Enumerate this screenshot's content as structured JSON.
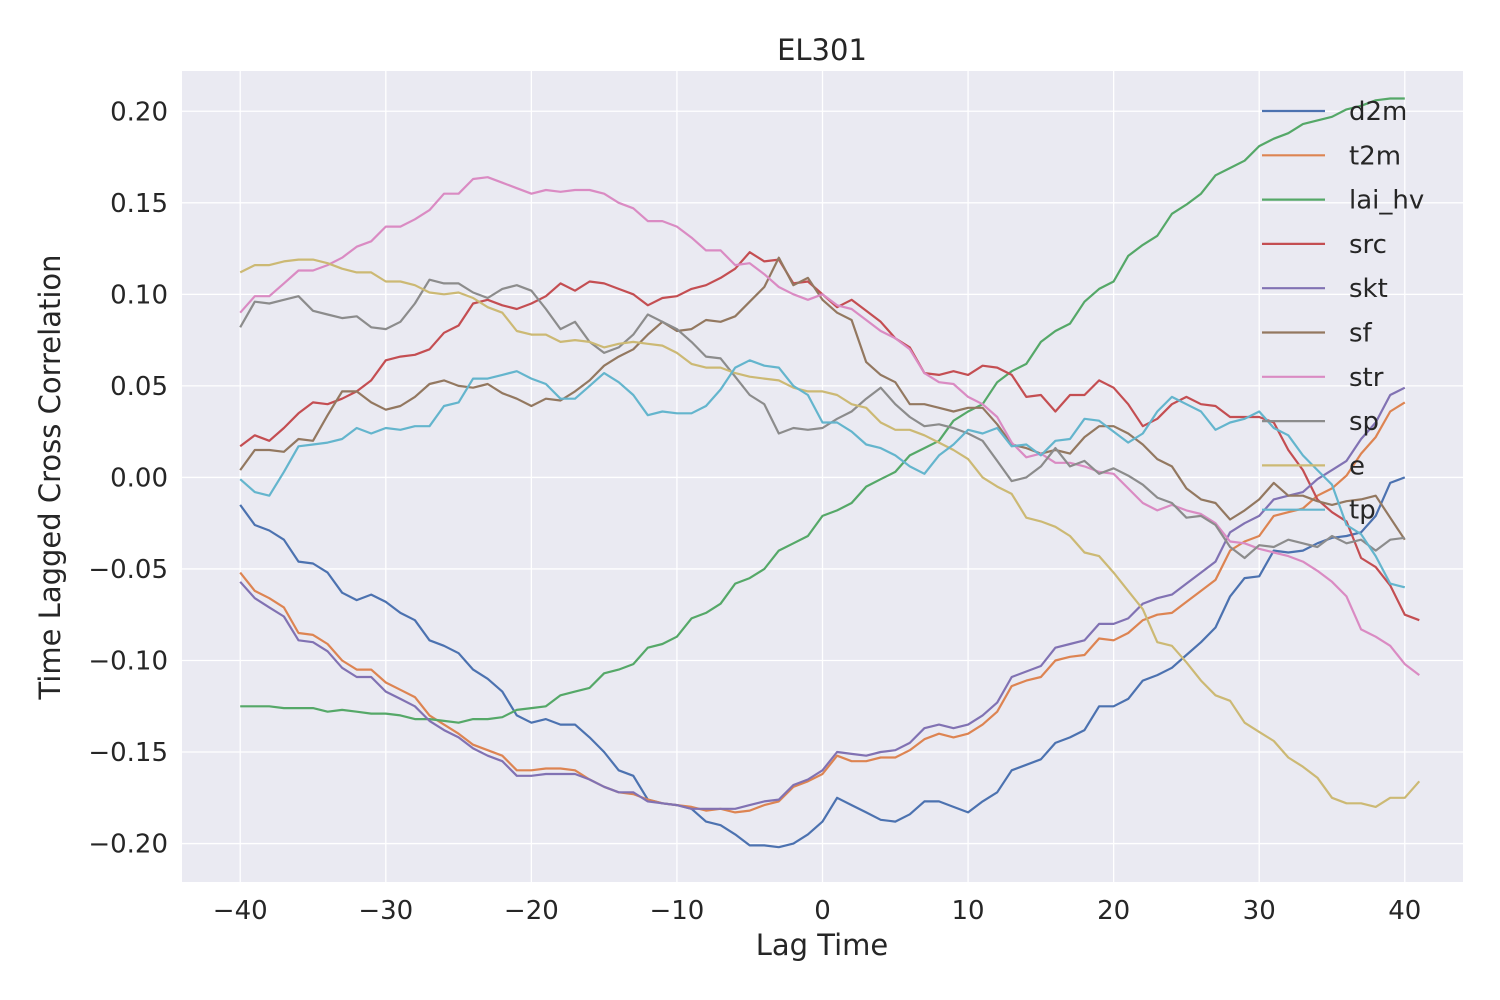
{
  "chart_data": {
    "type": "line",
    "title": "EL301",
    "xlabel": "Lag Time",
    "ylabel": "Time Lagged Cross Correlation",
    "xlim": [
      -44,
      44
    ],
    "ylim": [
      -0.221,
      0.222
    ],
    "x_ticks": [
      -40,
      -30,
      -20,
      -10,
      0,
      10,
      20,
      30,
      40
    ],
    "x_tick_labels": [
      "−40",
      "−30",
      "−20",
      "−10",
      "0",
      "10",
      "20",
      "30",
      "40"
    ],
    "y_ticks": [
      0.2,
      0.15,
      0.1,
      0.05,
      0.0,
      -0.05,
      -0.1,
      -0.15,
      -0.2
    ],
    "y_tick_labels": [
      "0.20",
      "0.15",
      "0.10",
      "0.05",
      "0.00",
      "−0.05",
      "−0.10",
      "−0.15",
      "−0.20"
    ],
    "grid": true,
    "legend_position": "upper right",
    "x_start": -40,
    "x_step": 1,
    "series": [
      {
        "name": "d2m",
        "color": "#4c72b0",
        "values": [
          -0.015,
          -0.026,
          -0.029,
          -0.034,
          -0.046,
          -0.047,
          -0.052,
          -0.063,
          -0.067,
          -0.064,
          -0.068,
          -0.074,
          -0.078,
          -0.089,
          -0.092,
          -0.096,
          -0.105,
          -0.11,
          -0.117,
          -0.13,
          -0.134,
          -0.132,
          -0.135,
          -0.135,
          -0.142,
          -0.15,
          -0.16,
          -0.163,
          -0.176,
          -0.178,
          -0.179,
          -0.181,
          -0.188,
          -0.19,
          -0.195,
          -0.201,
          -0.201,
          -0.202,
          -0.2,
          -0.195,
          -0.188,
          -0.175,
          -0.179,
          -0.183,
          -0.187,
          -0.188,
          -0.184,
          -0.177,
          -0.177,
          -0.18,
          -0.183,
          -0.177,
          -0.172,
          -0.16,
          -0.157,
          -0.154,
          -0.145,
          -0.142,
          -0.138,
          -0.125,
          -0.125,
          -0.121,
          -0.111,
          -0.108,
          -0.104,
          -0.097,
          -0.09,
          -0.082,
          -0.065,
          -0.055,
          -0.054,
          -0.04,
          -0.041,
          -0.04,
          -0.036,
          -0.033,
          -0.032,
          -0.03,
          -0.021,
          -0.003,
          0.0
        ]
      },
      {
        "name": "t2m",
        "color": "#dd8452",
        "values": [
          -0.052,
          -0.062,
          -0.066,
          -0.071,
          -0.085,
          -0.086,
          -0.091,
          -0.1,
          -0.105,
          -0.105,
          -0.112,
          -0.116,
          -0.12,
          -0.13,
          -0.135,
          -0.14,
          -0.146,
          -0.149,
          -0.152,
          -0.16,
          -0.16,
          -0.159,
          -0.159,
          -0.16,
          -0.165,
          -0.169,
          -0.172,
          -0.173,
          -0.176,
          -0.178,
          -0.179,
          -0.18,
          -0.182,
          -0.181,
          -0.183,
          -0.182,
          -0.179,
          -0.177,
          -0.169,
          -0.166,
          -0.162,
          -0.152,
          -0.155,
          -0.155,
          -0.153,
          -0.153,
          -0.149,
          -0.143,
          -0.14,
          -0.142,
          -0.14,
          -0.135,
          -0.128,
          -0.114,
          -0.111,
          -0.109,
          -0.1,
          -0.098,
          -0.097,
          -0.088,
          -0.089,
          -0.085,
          -0.078,
          -0.075,
          -0.074,
          -0.068,
          -0.062,
          -0.056,
          -0.04,
          -0.035,
          -0.032,
          -0.021,
          -0.019,
          -0.017,
          -0.01,
          -0.006,
          0.001,
          0.013,
          0.022,
          0.036,
          0.041
        ]
      },
      {
        "name": "lai_hv",
        "color": "#55a868",
        "values": [
          -0.125,
          -0.125,
          -0.125,
          -0.126,
          -0.126,
          -0.126,
          -0.128,
          -0.127,
          -0.128,
          -0.129,
          -0.129,
          -0.13,
          -0.132,
          -0.132,
          -0.133,
          -0.134,
          -0.132,
          -0.132,
          -0.131,
          -0.127,
          -0.126,
          -0.125,
          -0.119,
          -0.117,
          -0.115,
          -0.107,
          -0.105,
          -0.102,
          -0.093,
          -0.091,
          -0.087,
          -0.077,
          -0.074,
          -0.069,
          -0.058,
          -0.055,
          -0.05,
          -0.04,
          -0.036,
          -0.032,
          -0.021,
          -0.018,
          -0.014,
          -0.005,
          -0.001,
          0.003,
          0.012,
          0.016,
          0.02,
          0.031,
          0.036,
          0.04,
          0.052,
          0.058,
          0.062,
          0.074,
          0.08,
          0.084,
          0.096,
          0.103,
          0.107,
          0.121,
          0.127,
          0.132,
          0.144,
          0.149,
          0.155,
          0.165,
          0.169,
          0.173,
          0.181,
          0.185,
          0.188,
          0.193,
          0.195,
          0.197,
          0.201,
          0.203,
          0.206,
          0.207,
          0.207
        ]
      },
      {
        "name": "src",
        "color": "#c44e52",
        "values": [
          0.017,
          0.023,
          0.02,
          0.027,
          0.035,
          0.041,
          0.04,
          0.043,
          0.047,
          0.053,
          0.064,
          0.066,
          0.067,
          0.07,
          0.079,
          0.083,
          0.095,
          0.097,
          0.094,
          0.092,
          0.095,
          0.099,
          0.106,
          0.102,
          0.107,
          0.106,
          0.103,
          0.1,
          0.094,
          0.098,
          0.099,
          0.103,
          0.105,
          0.109,
          0.114,
          0.123,
          0.118,
          0.119,
          0.106,
          0.107,
          0.1,
          0.093,
          0.097,
          0.091,
          0.085,
          0.076,
          0.071,
          0.057,
          0.056,
          0.058,
          0.056,
          0.061,
          0.06,
          0.056,
          0.044,
          0.045,
          0.036,
          0.045,
          0.045,
          0.053,
          0.049,
          0.04,
          0.028,
          0.032,
          0.04,
          0.044,
          0.04,
          0.039,
          0.033,
          0.033,
          0.033,
          0.03,
          0.015,
          0.004,
          -0.012,
          -0.019,
          -0.024,
          -0.044,
          -0.049,
          -0.059,
          -0.075,
          -0.078
        ]
      },
      {
        "name": "skt",
        "color": "#8172b3",
        "values": [
          -0.057,
          -0.066,
          -0.071,
          -0.076,
          -0.089,
          -0.09,
          -0.095,
          -0.104,
          -0.109,
          -0.109,
          -0.117,
          -0.121,
          -0.125,
          -0.133,
          -0.138,
          -0.142,
          -0.148,
          -0.152,
          -0.155,
          -0.163,
          -0.163,
          -0.162,
          -0.162,
          -0.162,
          -0.165,
          -0.169,
          -0.172,
          -0.172,
          -0.177,
          -0.178,
          -0.179,
          -0.181,
          -0.181,
          -0.181,
          -0.181,
          -0.179,
          -0.177,
          -0.176,
          -0.168,
          -0.165,
          -0.16,
          -0.15,
          -0.151,
          -0.152,
          -0.15,
          -0.149,
          -0.145,
          -0.137,
          -0.135,
          -0.137,
          -0.135,
          -0.13,
          -0.123,
          -0.109,
          -0.106,
          -0.103,
          -0.093,
          -0.091,
          -0.089,
          -0.08,
          -0.08,
          -0.077,
          -0.069,
          -0.066,
          -0.064,
          -0.058,
          -0.052,
          -0.046,
          -0.03,
          -0.025,
          -0.021,
          -0.012,
          -0.01,
          -0.008,
          -0.001,
          0.004,
          0.009,
          0.021,
          0.03,
          0.045,
          0.049
        ]
      },
      {
        "name": "sf",
        "color": "#937860",
        "values": [
          0.004,
          0.015,
          0.015,
          0.014,
          0.021,
          0.02,
          0.034,
          0.047,
          0.047,
          0.041,
          0.037,
          0.039,
          0.044,
          0.051,
          0.053,
          0.05,
          0.049,
          0.051,
          0.046,
          0.043,
          0.039,
          0.043,
          0.042,
          0.047,
          0.053,
          0.061,
          0.066,
          0.07,
          0.078,
          0.085,
          0.08,
          0.081,
          0.086,
          0.085,
          0.088,
          0.096,
          0.104,
          0.12,
          0.105,
          0.109,
          0.097,
          0.09,
          0.086,
          0.063,
          0.056,
          0.052,
          0.04,
          0.04,
          0.038,
          0.036,
          0.038,
          0.038,
          0.029,
          0.018,
          0.016,
          0.013,
          0.015,
          0.013,
          0.022,
          0.028,
          0.028,
          0.024,
          0.018,
          0.01,
          0.006,
          -0.006,
          -0.012,
          -0.014,
          -0.023,
          -0.018,
          -0.012,
          -0.003,
          -0.01,
          -0.01,
          -0.013,
          -0.015,
          -0.013,
          -0.012,
          -0.01,
          -0.022,
          -0.034
        ]
      },
      {
        "name": "str",
        "color": "#da8bc3",
        "values": [
          0.09,
          0.099,
          0.099,
          0.106,
          0.113,
          0.113,
          0.116,
          0.12,
          0.126,
          0.129,
          0.137,
          0.137,
          0.141,
          0.146,
          0.155,
          0.155,
          0.163,
          0.164,
          0.161,
          0.158,
          0.155,
          0.157,
          0.156,
          0.157,
          0.157,
          0.155,
          0.15,
          0.147,
          0.14,
          0.14,
          0.137,
          0.131,
          0.124,
          0.124,
          0.116,
          0.117,
          0.111,
          0.104,
          0.1,
          0.097,
          0.1,
          0.094,
          0.092,
          0.086,
          0.08,
          0.076,
          0.07,
          0.057,
          0.052,
          0.051,
          0.044,
          0.04,
          0.033,
          0.019,
          0.011,
          0.013,
          0.008,
          0.008,
          0.006,
          0.003,
          0.002,
          -0.006,
          -0.014,
          -0.018,
          -0.015,
          -0.018,
          -0.02,
          -0.025,
          -0.035,
          -0.036,
          -0.039,
          -0.041,
          -0.043,
          -0.046,
          -0.051,
          -0.057,
          -0.065,
          -0.083,
          -0.087,
          -0.092,
          -0.102,
          -0.108
        ]
      },
      {
        "name": "sp",
        "color": "#8c8c8c",
        "values": [
          0.082,
          0.096,
          0.095,
          0.097,
          0.099,
          0.091,
          0.089,
          0.087,
          0.088,
          0.082,
          0.081,
          0.085,
          0.095,
          0.108,
          0.106,
          0.106,
          0.101,
          0.098,
          0.103,
          0.105,
          0.102,
          0.092,
          0.081,
          0.085,
          0.074,
          0.068,
          0.071,
          0.078,
          0.089,
          0.085,
          0.081,
          0.074,
          0.066,
          0.065,
          0.055,
          0.045,
          0.04,
          0.024,
          0.027,
          0.026,
          0.027,
          0.032,
          0.036,
          0.043,
          0.049,
          0.04,
          0.033,
          0.028,
          0.029,
          0.027,
          0.024,
          0.02,
          0.009,
          -0.002,
          0.0,
          0.006,
          0.016,
          0.006,
          0.009,
          0.002,
          0.005,
          0.001,
          -0.004,
          -0.011,
          -0.014,
          -0.022,
          -0.021,
          -0.026,
          -0.038,
          -0.044,
          -0.037,
          -0.038,
          -0.034,
          -0.036,
          -0.038,
          -0.032,
          -0.036,
          -0.034,
          -0.04,
          -0.034,
          -0.033
        ]
      },
      {
        "name": "e",
        "color": "#ccb974",
        "values": [
          0.112,
          0.116,
          0.116,
          0.118,
          0.119,
          0.119,
          0.117,
          0.114,
          0.112,
          0.112,
          0.107,
          0.107,
          0.105,
          0.101,
          0.1,
          0.101,
          0.098,
          0.093,
          0.09,
          0.08,
          0.078,
          0.078,
          0.074,
          0.075,
          0.074,
          0.071,
          0.073,
          0.074,
          0.073,
          0.072,
          0.068,
          0.062,
          0.06,
          0.06,
          0.057,
          0.055,
          0.054,
          0.053,
          0.049,
          0.047,
          0.047,
          0.045,
          0.04,
          0.038,
          0.03,
          0.026,
          0.026,
          0.023,
          0.019,
          0.015,
          0.01,
          0.0,
          -0.005,
          -0.009,
          -0.022,
          -0.024,
          -0.027,
          -0.032,
          -0.041,
          -0.043,
          -0.052,
          -0.062,
          -0.072,
          -0.09,
          -0.092,
          -0.101,
          -0.111,
          -0.119,
          -0.122,
          -0.134,
          -0.139,
          -0.144,
          -0.153,
          -0.158,
          -0.164,
          -0.175,
          -0.178,
          -0.178,
          -0.18,
          -0.175,
          -0.175,
          -0.166
        ]
      },
      {
        "name": "tp",
        "color": "#64b5cd",
        "values": [
          -0.001,
          -0.008,
          -0.01,
          0.003,
          0.017,
          0.018,
          0.019,
          0.021,
          0.027,
          0.024,
          0.027,
          0.026,
          0.028,
          0.028,
          0.039,
          0.041,
          0.054,
          0.054,
          0.056,
          0.058,
          0.054,
          0.051,
          0.043,
          0.043,
          0.05,
          0.057,
          0.052,
          0.045,
          0.034,
          0.036,
          0.035,
          0.035,
          0.039,
          0.048,
          0.06,
          0.064,
          0.061,
          0.06,
          0.05,
          0.045,
          0.03,
          0.03,
          0.025,
          0.018,
          0.016,
          0.012,
          0.006,
          0.002,
          0.012,
          0.018,
          0.026,
          0.024,
          0.027,
          0.017,
          0.018,
          0.012,
          0.02,
          0.021,
          0.032,
          0.031,
          0.025,
          0.019,
          0.024,
          0.036,
          0.044,
          0.04,
          0.036,
          0.026,
          0.03,
          0.032,
          0.036,
          0.027,
          0.023,
          0.012,
          0.004,
          -0.004,
          -0.026,
          -0.031,
          -0.043,
          -0.058,
          -0.06
        ]
      }
    ]
  }
}
